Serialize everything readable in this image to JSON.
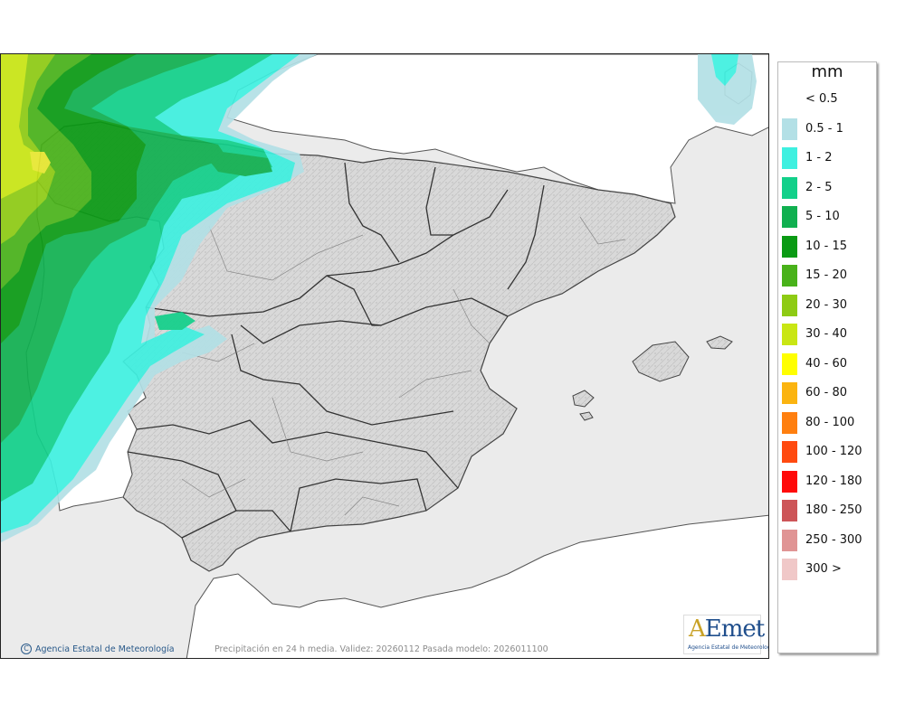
{
  "legend": {
    "unit": "mm",
    "items": [
      {
        "label": "< 0.5",
        "color": "#ffffff"
      },
      {
        "label": "0.5 - 1",
        "color": "#b3e0e6"
      },
      {
        "label": "1 - 2",
        "color": "#3ef0e0"
      },
      {
        "label": "2 - 5",
        "color": "#12d08a"
      },
      {
        "label": "5 - 10",
        "color": "#10b050"
      },
      {
        "label": "10 - 15",
        "color": "#0a9a14"
      },
      {
        "label": "15 - 20",
        "color": "#49b21a"
      },
      {
        "label": "20 - 30",
        "color": "#8ecb14"
      },
      {
        "label": "30 - 40",
        "color": "#c9e614"
      },
      {
        "label": "40 - 60",
        "color": "#ffff00"
      },
      {
        "label": "60 - 80",
        "color": "#fbb410"
      },
      {
        "label": "80 - 100",
        "color": "#ff7f0f"
      },
      {
        "label": "100 - 120",
        "color": "#ff4a10"
      },
      {
        "label": "120 - 180",
        "color": "#ff0a0a"
      },
      {
        "label": "180 - 250",
        "color": "#cd5558"
      },
      {
        "label": "250 - 300",
        "color": "#e09494"
      },
      {
        "label": "300 >",
        "color": "#f0c8c8"
      }
    ]
  },
  "footer": {
    "copyright_symbol": "C",
    "copyright": "Agencia Estatal de Meteorología",
    "caption": "Precipitación en 24 h media. Validez: 20260112 Pasada modelo: 2026011100"
  },
  "logo": {
    "text": "AEmet",
    "subtitle": "Agencia Estatal de Meteorología"
  }
}
